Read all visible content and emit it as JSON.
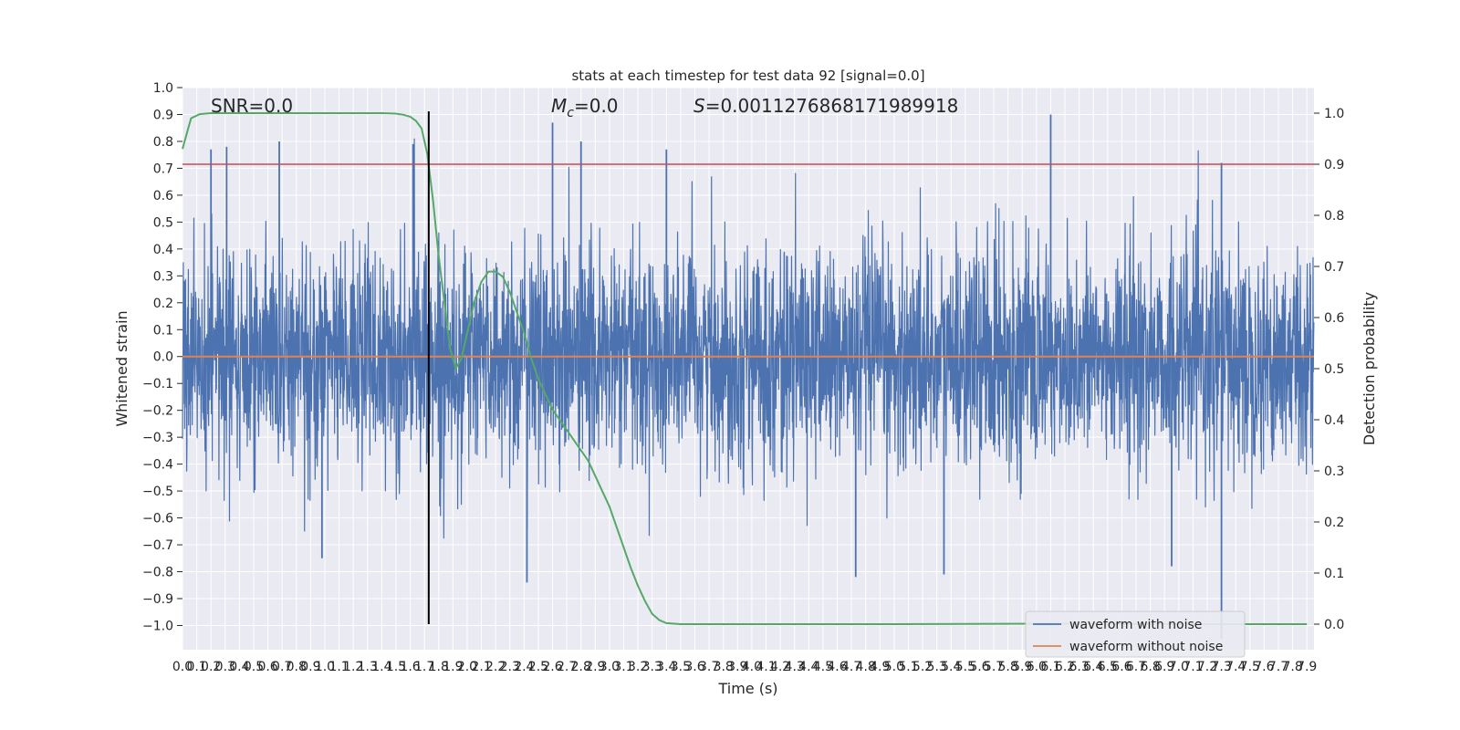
{
  "chart_data": {
    "type": "line",
    "title": "stats at each timestep for test data 92 [signal=0.0]",
    "xlabel": "Time (s)",
    "ylabel": "Whitened strain",
    "y2label": "Detection probability",
    "xlim": [
      0.0,
      7.95
    ],
    "ylim": [
      -1.09,
      1.0
    ],
    "y2lim": [
      -0.05,
      1.05
    ],
    "x_tick_step": 0.1,
    "y_tick_step": 0.1,
    "y2_tick_step": 0.1,
    "grid": true,
    "legend_position": "bottom-right",
    "annotations": {
      "snr": "SNR=0.0",
      "mc_symbol": "M",
      "mc_sub": "c",
      "mc_value": "=0.0",
      "s_symbol": "S",
      "s_value": "=0.0011276868171989918"
    },
    "threshold": {
      "axis": "y2",
      "value": 0.9,
      "color": "#c44e52"
    },
    "marker_time": 1.73,
    "series": [
      {
        "name": "waveform with noise",
        "axis": "y",
        "color": "#4c72b0",
        "kind": "noise",
        "samples_per_second": 512,
        "duration": 7.95,
        "sigma": 0.2,
        "peaks": [
          [
            0.2,
            0.77
          ],
          [
            0.31,
            0.78
          ],
          [
            0.68,
            0.8
          ],
          [
            1.62,
            0.79
          ],
          [
            2.6,
            0.87
          ],
          [
            2.8,
            0.8
          ],
          [
            3.4,
            0.77
          ],
          [
            6.1,
            0.9
          ],
          [
            7.3,
            0.72
          ],
          [
            2.42,
            -0.84
          ],
          [
            4.73,
            -0.82
          ],
          [
            5.35,
            -0.81
          ],
          [
            6.95,
            -0.78
          ],
          [
            7.3,
            -1.05
          ],
          [
            0.98,
            -0.75
          ]
        ]
      },
      {
        "name": "waveform without noise",
        "axis": "y",
        "color": "#dd8452",
        "kind": "line",
        "x": [
          0.0,
          7.95
        ],
        "y": [
          0.0,
          0.0
        ]
      },
      {
        "name": "detection probability",
        "axis": "y2",
        "color": "#55a868",
        "kind": "line",
        "x": [
          0.0,
          0.06,
          0.12,
          0.2,
          0.4,
          0.8,
          1.2,
          1.4,
          1.5,
          1.55,
          1.6,
          1.64,
          1.68,
          1.72,
          1.76,
          1.8,
          1.84,
          1.88,
          1.92,
          1.96,
          2.0,
          2.05,
          2.1,
          2.15,
          2.2,
          2.25,
          2.3,
          2.35,
          2.4,
          2.45,
          2.5,
          2.55,
          2.6,
          2.65,
          2.7,
          2.75,
          2.8,
          2.85,
          2.9,
          2.95,
          3.0,
          3.05,
          3.1,
          3.15,
          3.2,
          3.25,
          3.3,
          3.35,
          3.4,
          3.5,
          3.8,
          5.0,
          6.0,
          7.0,
          7.9
        ],
        "y": [
          0.93,
          0.99,
          0.998,
          1.0,
          1.0,
          1.0,
          1.0,
          1.0,
          0.999,
          0.997,
          0.993,
          0.985,
          0.97,
          0.92,
          0.83,
          0.72,
          0.63,
          0.54,
          0.5,
          0.52,
          0.57,
          0.63,
          0.67,
          0.69,
          0.69,
          0.68,
          0.65,
          0.61,
          0.57,
          0.52,
          0.48,
          0.45,
          0.42,
          0.4,
          0.38,
          0.36,
          0.34,
          0.32,
          0.29,
          0.26,
          0.23,
          0.19,
          0.15,
          0.11,
          0.075,
          0.045,
          0.02,
          0.008,
          0.002,
          0.0,
          0.0,
          0.0,
          0.001,
          0.0,
          0.0
        ]
      }
    ]
  }
}
